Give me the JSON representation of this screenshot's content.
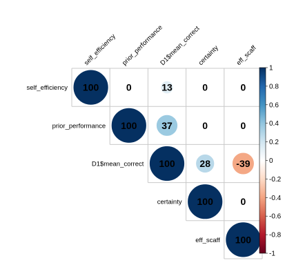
{
  "chart_data": {
    "type": "heatmap",
    "subtype": "correlation-upper-triangle-circles",
    "variables": [
      "self_efficiency",
      "prior_performance",
      "D1$mean_correct",
      "certainty",
      "eff_scaff"
    ],
    "matrix": [
      [
        100,
        0,
        13,
        0,
        0
      ],
      [
        null,
        100,
        37,
        0,
        0
      ],
      [
        null,
        null,
        100,
        28,
        -39
      ],
      [
        null,
        null,
        null,
        100,
        0
      ],
      [
        null,
        null,
        null,
        null,
        100
      ]
    ],
    "labels": [
      [
        "100",
        "0",
        "13",
        "0",
        "0"
      ],
      [
        null,
        "100",
        "37",
        "0",
        "0"
      ],
      [
        null,
        null,
        "100",
        "28",
        "-39"
      ],
      [
        null,
        null,
        null,
        "100",
        "0"
      ],
      [
        null,
        null,
        null,
        null,
        "100"
      ]
    ],
    "value_scale": 100,
    "colorbar": {
      "range": [
        -1,
        1
      ],
      "ticks": [
        "1",
        "0.8",
        "0.6",
        "0.4",
        "0.2",
        "0",
        "-0.2",
        "-0.4",
        "-0.6",
        "-0.8",
        "-1"
      ],
      "tick_values": [
        1,
        0.8,
        0.6,
        0.4,
        0.2,
        0,
        -0.2,
        -0.4,
        -0.6,
        -0.8,
        -1
      ],
      "palette": [
        "#67001F",
        "#B2182B",
        "#D6604D",
        "#F4A582",
        "#FDDBC7",
        "#FFFFFF",
        "#D1E5F0",
        "#92C5DE",
        "#4393C3",
        "#2166AC",
        "#053061"
      ]
    },
    "title": "",
    "xlabel": "",
    "ylabel": ""
  }
}
